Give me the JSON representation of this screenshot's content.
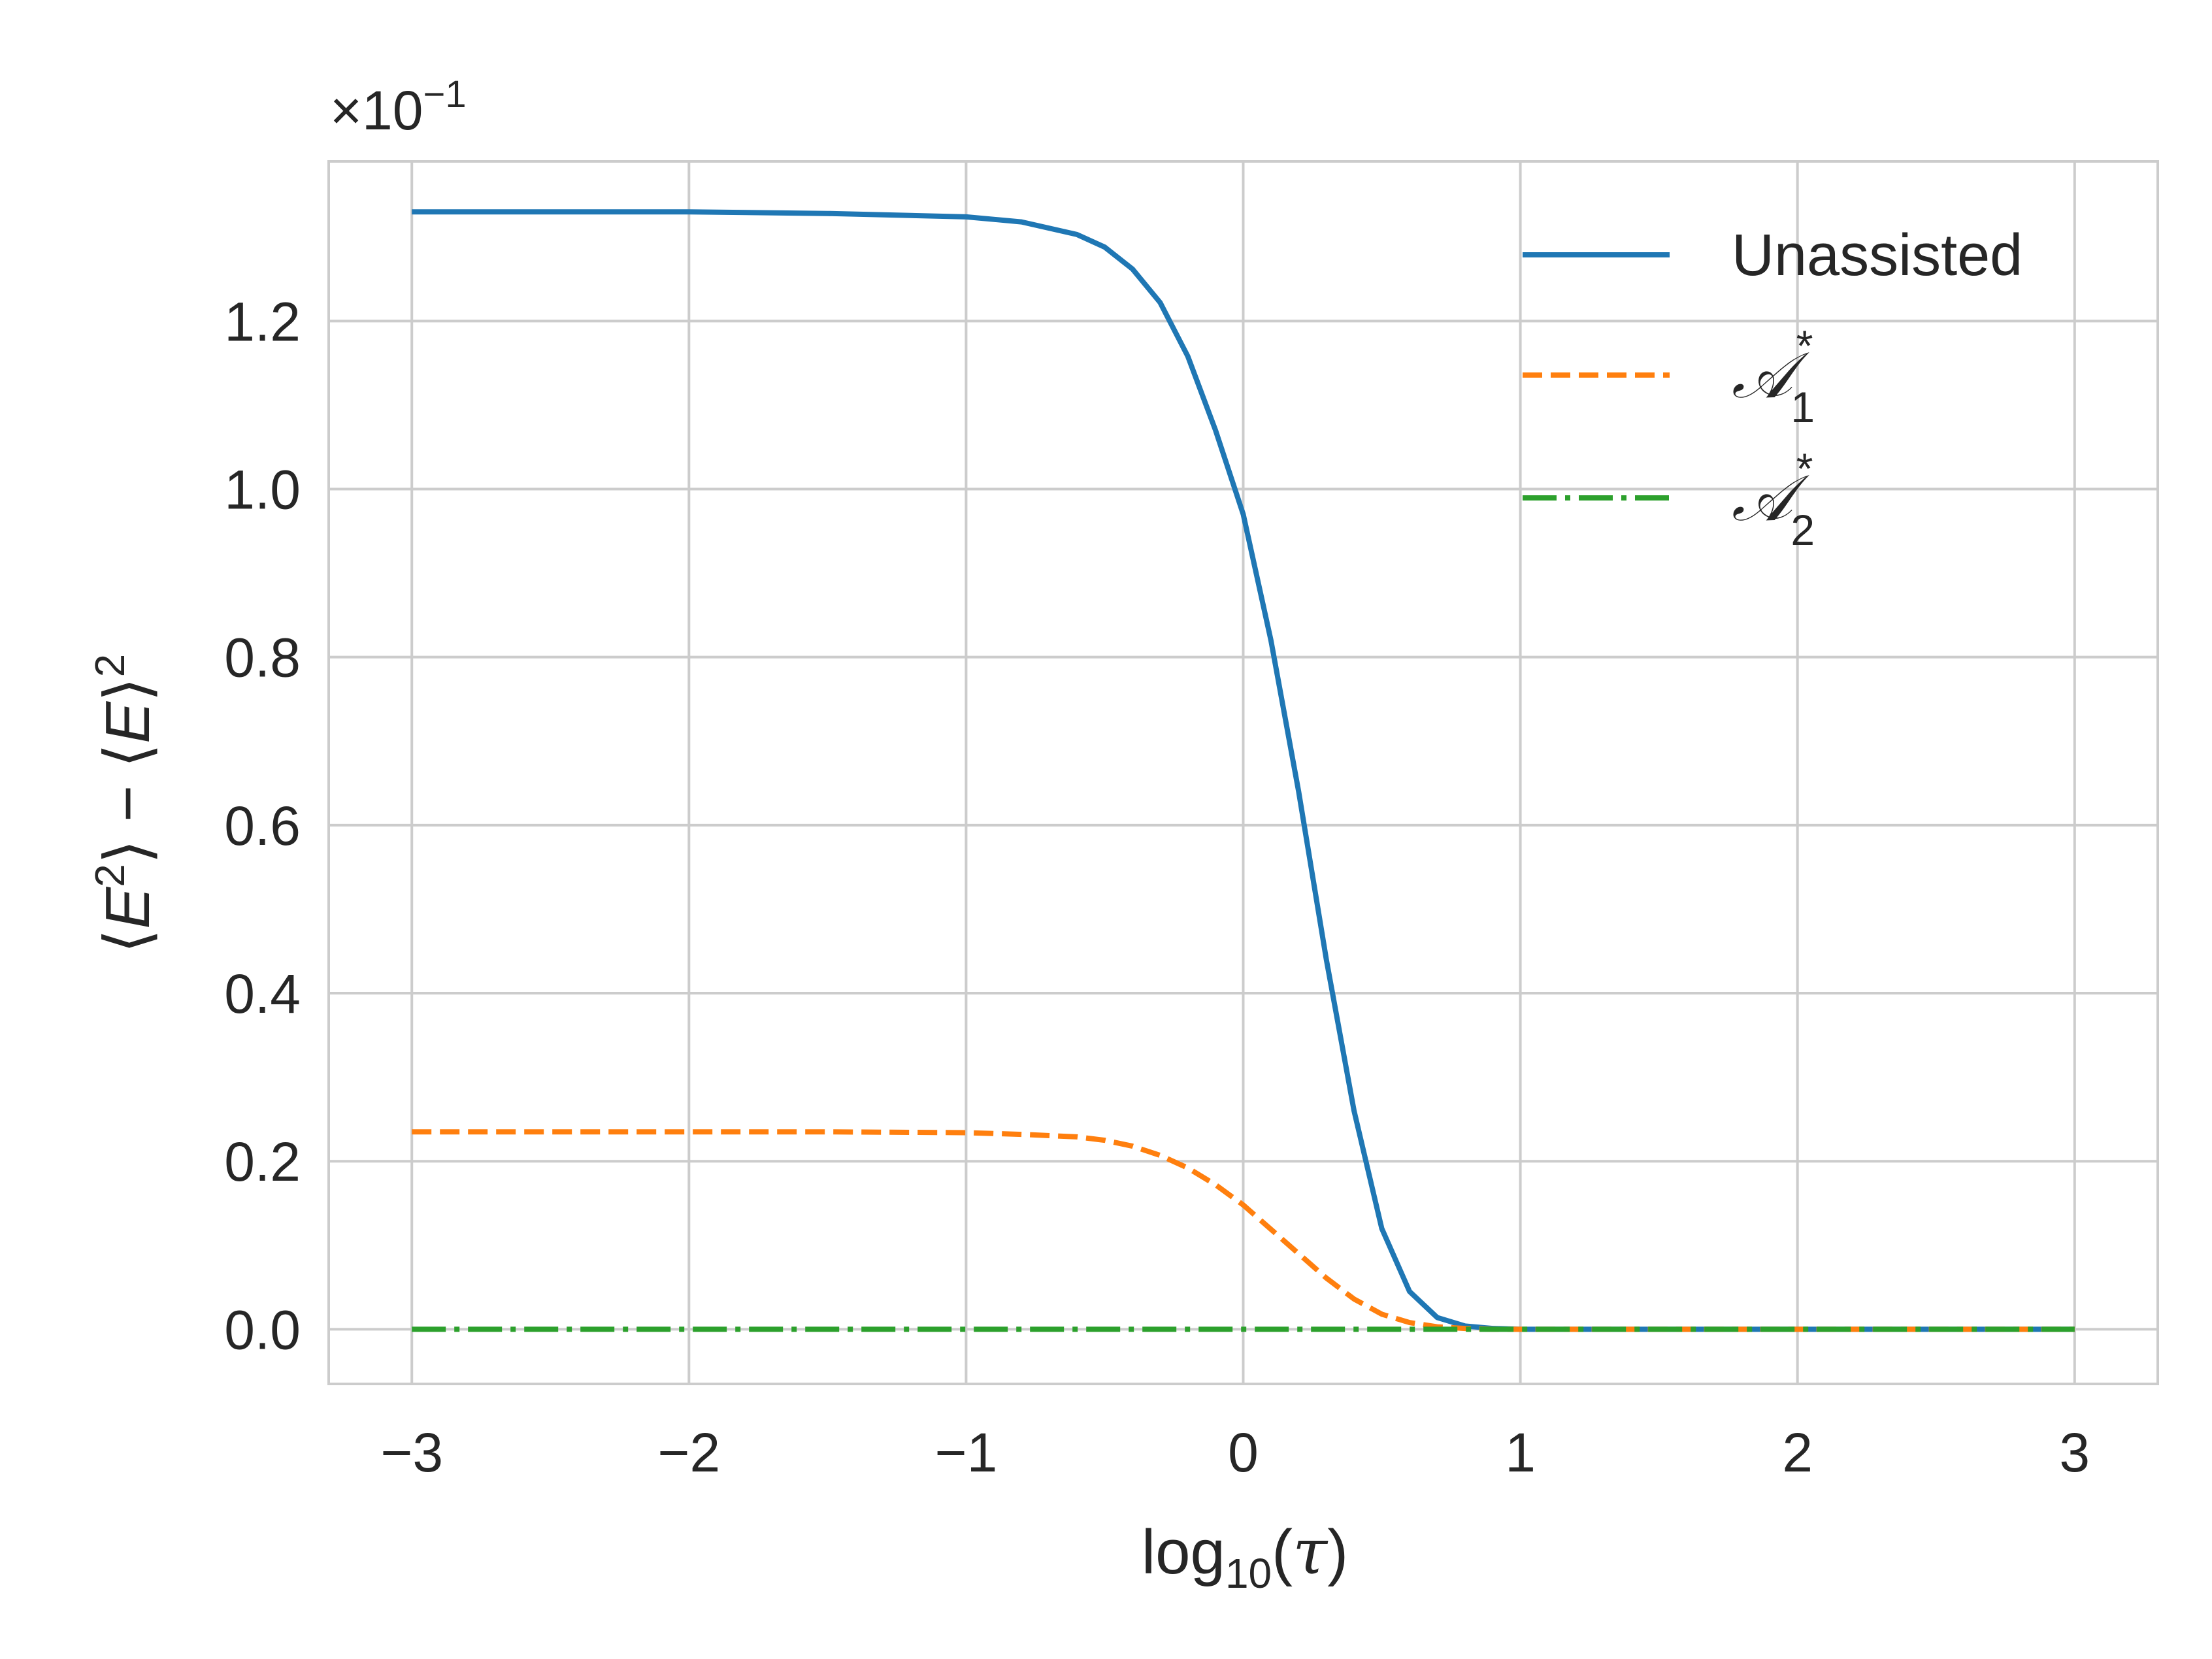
{
  "chart_data": {
    "type": "line",
    "title": "",
    "xlabel": {
      "prefix": "log",
      "sub": "10",
      "open": "(",
      "var": "τ",
      "close": ")"
    },
    "ylabel": {
      "l1": "⟨",
      "v1": "E",
      "sup1": "2",
      "r1": "⟩ − ⟨",
      "v2": "E",
      "r2": "⟩",
      "sup2": "2"
    },
    "y_scale": {
      "times": "×10",
      "exponent": "−1"
    },
    "xlim": [
      -3.3,
      3.3
    ],
    "ylim": [
      -0.065,
      1.39
    ],
    "xticks": [
      -3,
      -2,
      -1,
      0,
      1,
      2,
      3
    ],
    "xtick_labels": [
      "−3",
      "−2",
      "−1",
      "0",
      "1",
      "2",
      "3"
    ],
    "yticks": [
      0.0,
      0.2,
      0.4,
      0.6,
      0.8,
      1.0,
      1.2
    ],
    "ytick_labels": [
      "0.0",
      "0.2",
      "0.4",
      "0.6",
      "0.8",
      "1.0",
      "1.2"
    ],
    "grid": true,
    "legend_position": "top-right",
    "series": [
      {
        "label": "Unassisted",
        "color": "#1f77b4",
        "dash": "solid",
        "x": [
          -3,
          -2.5,
          -2,
          -1.5,
          -1,
          -0.8,
          -0.6,
          -0.5,
          -0.4,
          -0.3,
          -0.2,
          -0.1,
          0,
          0.1,
          0.2,
          0.3,
          0.4,
          0.5,
          0.6,
          0.7,
          0.8,
          0.9,
          1,
          1.2,
          1.5,
          2,
          2.5,
          3
        ],
        "y": [
          1.33,
          1.33,
          1.33,
          1.328,
          1.324,
          1.318,
          1.303,
          1.288,
          1.262,
          1.222,
          1.158,
          1.07,
          0.97,
          0.82,
          0.64,
          0.44,
          0.26,
          0.12,
          0.045,
          0.014,
          0.004,
          0.001,
          0.0,
          0.0,
          0.0,
          0.0,
          0.0,
          0.0
        ]
      },
      {
        "label": "A1*",
        "legend": {
          "letter": "𝒜",
          "sub": "1",
          "sup": "*"
        },
        "color": "#ff7f0e",
        "dash": "dashed",
        "x": [
          -3,
          -2.5,
          -2,
          -1.5,
          -1,
          -0.8,
          -0.6,
          -0.5,
          -0.4,
          -0.3,
          -0.2,
          -0.1,
          0,
          0.1,
          0.2,
          0.3,
          0.4,
          0.5,
          0.6,
          0.7,
          0.8,
          0.9,
          1,
          1.2,
          1.5,
          2,
          2.5,
          3
        ],
        "y": [
          0.235,
          0.235,
          0.235,
          0.235,
          0.234,
          0.232,
          0.229,
          0.225,
          0.218,
          0.207,
          0.192,
          0.172,
          0.148,
          0.119,
          0.09,
          0.061,
          0.036,
          0.018,
          0.008,
          0.003,
          0.001,
          0.0,
          0.0,
          0.0,
          0.0,
          0.0,
          0.0,
          0.0
        ]
      },
      {
        "label": "A2*",
        "legend": {
          "letter": "𝒜",
          "sub": "2",
          "sup": "*"
        },
        "color": "#2ca02c",
        "dash": "dashdot",
        "x": [
          -3,
          3
        ],
        "y": [
          0.0,
          0.0
        ]
      }
    ]
  }
}
